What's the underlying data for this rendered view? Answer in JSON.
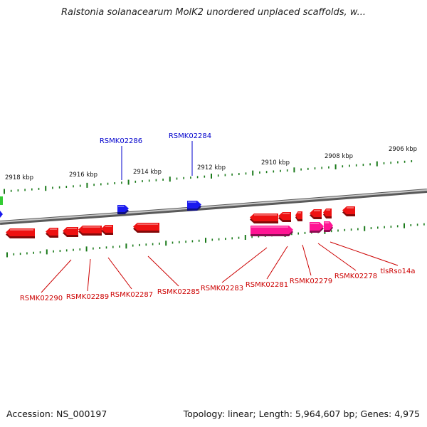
{
  "title": "Ralstonia solanacearum MolK2 unordered unplaced scaffolds, w...",
  "footer": {
    "accession": "Accession: NS_000197",
    "summary": "Topology: linear; Length: 5,964,607 bp; Genes: 4,975"
  },
  "colors": {
    "backbone": "#8a8a8a",
    "tick": "#1a7a1a",
    "gene_red": "#ee1111",
    "gene_pink": "#ff1493",
    "gene_blue": "#1a1aee",
    "label_red": "#cc0000",
    "label_blue": "#0000cc",
    "gene_green": "#33cc33"
  },
  "ruler_labels": [
    "2918 kbp",
    "2916 kbp",
    "2914 kbp",
    "2912 kbp",
    "2910 kbp",
    "2908 kbp",
    "2906 kbp"
  ],
  "top_gene_labels": [
    "RSMK02286",
    "RSMK02284"
  ],
  "bottom_gene_labels": [
    "RSMK02290",
    "RSMK02289",
    "RSMK02287",
    "RSMK02285",
    "RSMK02283",
    "RSMK02281",
    "RSMK02279",
    "RSMK02278",
    "tlsRso14a"
  ]
}
